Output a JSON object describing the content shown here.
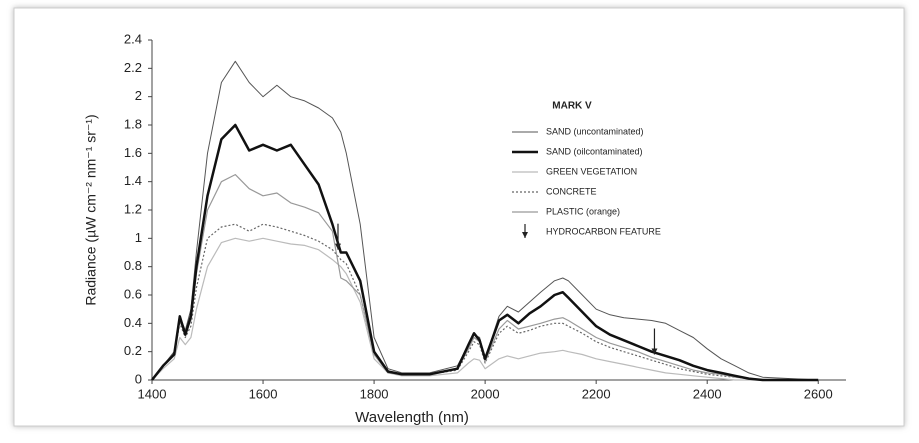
{
  "chart_data": {
    "type": "line",
    "x_label": "Wavelength (nm)",
    "y_label": "Radiance (µW cm⁻² nm⁻¹ sr⁻¹)",
    "legend_title": "MARK V",
    "x": [
      1400,
      1420,
      1440,
      1450,
      1460,
      1470,
      1480,
      1500,
      1525,
      1550,
      1575,
      1600,
      1625,
      1650,
      1675,
      1700,
      1725,
      1740,
      1750,
      1775,
      1800,
      1825,
      1850,
      1900,
      1950,
      1970,
      1980,
      1990,
      2000,
      2025,
      2040,
      2060,
      2080,
      2100,
      2125,
      2140,
      2150,
      2175,
      2200,
      2225,
      2250,
      2275,
      2300,
      2325,
      2350,
      2375,
      2400,
      2425,
      2450,
      2475,
      2500,
      2550,
      2600
    ],
    "series": [
      {
        "name": "SAND (uncontaminated)",
        "color": "#555555",
        "width": 1,
        "dash": "none",
        "values": [
          0,
          0.1,
          0.2,
          0.45,
          0.35,
          0.5,
          0.9,
          1.6,
          2.1,
          2.25,
          2.1,
          2.0,
          2.08,
          2.0,
          1.97,
          1.92,
          1.85,
          1.75,
          1.6,
          1.1,
          0.3,
          0.08,
          0.05,
          0.05,
          0.1,
          0.25,
          0.32,
          0.3,
          0.15,
          0.45,
          0.52,
          0.48,
          0.55,
          0.62,
          0.7,
          0.72,
          0.7,
          0.6,
          0.5,
          0.46,
          0.44,
          0.43,
          0.42,
          0.4,
          0.35,
          0.3,
          0.22,
          0.15,
          0.1,
          0.05,
          0.02,
          0.01,
          0
        ]
      },
      {
        "name": "SAND (oilcontaminated)",
        "color": "#111111",
        "width": 2.5,
        "dash": "none",
        "values": [
          0,
          0.1,
          0.18,
          0.45,
          0.32,
          0.45,
          0.8,
          1.3,
          1.7,
          1.8,
          1.62,
          1.66,
          1.62,
          1.66,
          1.52,
          1.38,
          1.1,
          0.9,
          0.9,
          0.7,
          0.2,
          0.06,
          0.04,
          0.04,
          0.08,
          0.25,
          0.33,
          0.28,
          0.15,
          0.42,
          0.46,
          0.4,
          0.47,
          0.52,
          0.6,
          0.62,
          0.58,
          0.48,
          0.38,
          0.32,
          0.28,
          0.24,
          0.2,
          0.17,
          0.14,
          0.1,
          0.07,
          0.05,
          0.03,
          0.01,
          0,
          0,
          0
        ]
      },
      {
        "name": "GREEN VEGETATION",
        "color": "#bbbbbb",
        "width": 1.2,
        "dash": "none",
        "values": [
          0,
          0.08,
          0.15,
          0.3,
          0.25,
          0.3,
          0.5,
          0.8,
          0.97,
          1.0,
          0.98,
          1.0,
          0.98,
          0.96,
          0.95,
          0.92,
          0.85,
          0.8,
          0.75,
          0.55,
          0.15,
          0.05,
          0.03,
          0.03,
          0.05,
          0.12,
          0.15,
          0.14,
          0.08,
          0.15,
          0.17,
          0.15,
          0.17,
          0.19,
          0.2,
          0.21,
          0.2,
          0.18,
          0.15,
          0.13,
          0.11,
          0.09,
          0.07,
          0.05,
          0.04,
          0.03,
          0.02,
          0.01,
          0,
          0,
          0,
          0,
          0
        ]
      },
      {
        "name": "CONCRETE",
        "color": "#666666",
        "width": 1.2,
        "dash": "2 2",
        "values": [
          0,
          0.1,
          0.18,
          0.4,
          0.3,
          0.38,
          0.65,
          1.0,
          1.08,
          1.1,
          1.05,
          1.1,
          1.08,
          1.05,
          1.02,
          0.98,
          0.92,
          0.85,
          0.82,
          0.6,
          0.18,
          0.06,
          0.04,
          0.04,
          0.07,
          0.2,
          0.27,
          0.25,
          0.12,
          0.33,
          0.38,
          0.33,
          0.35,
          0.38,
          0.4,
          0.4,
          0.38,
          0.33,
          0.27,
          0.23,
          0.2,
          0.17,
          0.14,
          0.11,
          0.08,
          0.06,
          0.04,
          0.03,
          0.02,
          0.01,
          0,
          0,
          0
        ]
      },
      {
        "name": "PLASTIC (orange)",
        "color": "#999999",
        "width": 1.2,
        "dash": "none",
        "values": [
          0,
          0.1,
          0.2,
          0.42,
          0.33,
          0.42,
          0.75,
          1.2,
          1.4,
          1.45,
          1.35,
          1.3,
          1.32,
          1.25,
          1.22,
          1.18,
          1.05,
          0.72,
          0.7,
          0.6,
          0.18,
          0.05,
          0.04,
          0.04,
          0.08,
          0.22,
          0.3,
          0.27,
          0.13,
          0.36,
          0.42,
          0.36,
          0.38,
          0.4,
          0.43,
          0.44,
          0.42,
          0.36,
          0.3,
          0.26,
          0.23,
          0.2,
          0.16,
          0.13,
          0.1,
          0.07,
          0.05,
          0.04,
          0.02,
          0.01,
          0,
          0,
          0
        ]
      }
    ],
    "annotation": {
      "label": "HYDROCARBON FEATURE",
      "points": [
        {
          "x": 1735,
          "y": 0.92
        },
        {
          "x": 2305,
          "y": 0.18
        }
      ]
    },
    "xlim": [
      1400,
      2650
    ],
    "ylim": [
      0,
      2.4
    ],
    "xticks": [
      1400,
      1600,
      1800,
      2000,
      2200,
      2400,
      2600
    ],
    "yticks": [
      0,
      0.2,
      0.4,
      0.6,
      0.8,
      1,
      1.2,
      1.4,
      1.6,
      1.8,
      2,
      2.2,
      2.4
    ],
    "grid": false
  }
}
